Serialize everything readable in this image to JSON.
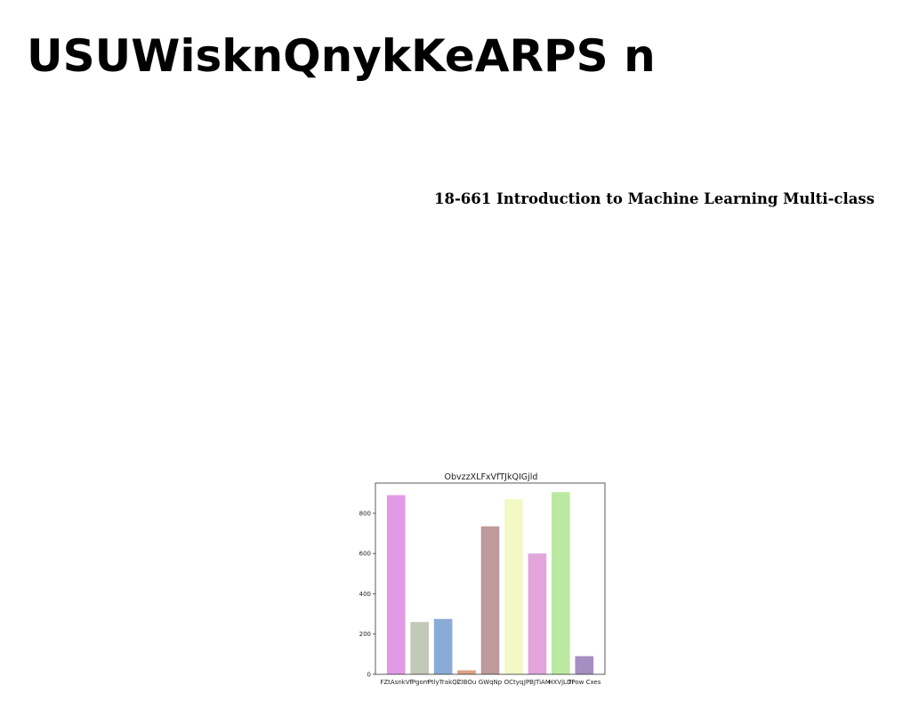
{
  "header": {
    "title": "USUWisknQnykKeARPS n",
    "subtitle": "18-661 Introduction to Machine Learning Multi-class"
  },
  "chart_data": {
    "type": "bar",
    "title": "ObvzzXLFxVfTJkQIGjld",
    "xlabel": "",
    "ylabel": "",
    "categories": [
      "FZtAsnkVf",
      "IPgom",
      "PtlyTrakQl",
      "ZIBOu",
      "GWqNp",
      "OCtyq",
      "JPBJTiAM",
      "HXVjLDI",
      "TPow Cxes"
    ],
    "values": [
      890,
      260,
      275,
      20,
      735,
      870,
      600,
      905,
      90
    ],
    "colors": [
      "#e19ae6",
      "#c1cab8",
      "#8aabd6",
      "#dda388",
      "#bf9a9a",
      "#f3f9c4",
      "#e1a5dc",
      "#bce9a1",
      "#a58ec2"
    ],
    "ylim": [
      0,
      950
    ],
    "yticks": [
      0,
      200,
      400,
      600,
      800
    ],
    "grid": false,
    "legend": "none"
  }
}
